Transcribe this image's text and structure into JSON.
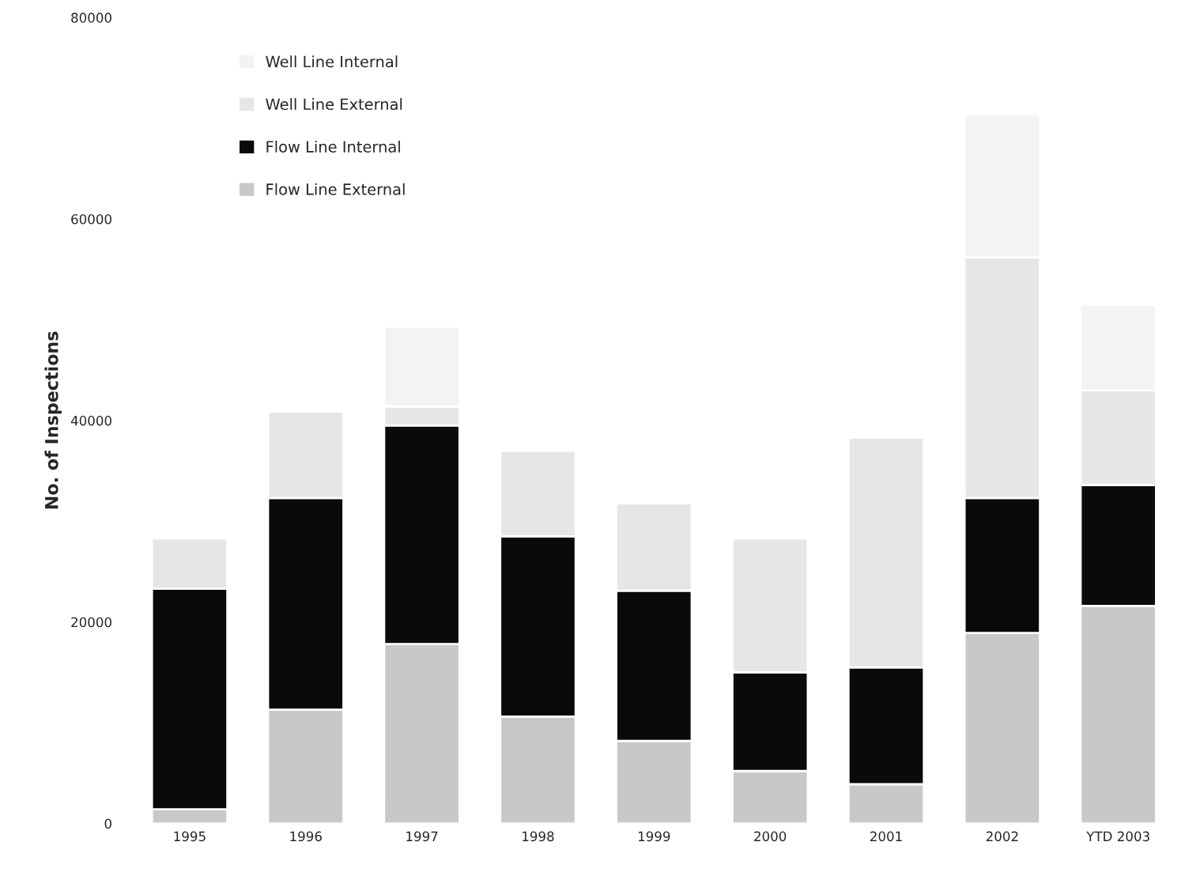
{
  "chart_data": {
    "type": "bar",
    "stacked": true,
    "ylabel": "No. of Inspections",
    "categories": [
      "1995",
      "1996",
      "1997",
      "1998",
      "1999",
      "2000",
      "2001",
      "2002",
      "YTD 2003"
    ],
    "series": [
      {
        "name": "Flow Line External",
        "color": "#c8c8c8",
        "values": [
          1400,
          11300,
          17800,
          10600,
          8200,
          5200,
          3900,
          18900,
          21600
        ]
      },
      {
        "name": "Flow Line Internal",
        "color": "#0a0a0a",
        "values": [
          21900,
          21000,
          21700,
          17900,
          14900,
          9800,
          11600,
          13400,
          12000
        ]
      },
      {
        "name": "Well Line External",
        "color": "#e6e6e6",
        "values": [
          5000,
          8600,
          1900,
          8500,
          8700,
          13300,
          22800,
          23900,
          9400
        ]
      },
      {
        "name": "Well Line Internal",
        "color": "#f3f3f3",
        "values": [
          0,
          0,
          7900,
          0,
          0,
          0,
          0,
          14200,
          8500
        ]
      }
    ],
    "ylim": [
      0,
      80000
    ],
    "yticks": [
      0,
      20000,
      40000,
      60000,
      80000
    ],
    "grid": false,
    "legend": "top left"
  }
}
